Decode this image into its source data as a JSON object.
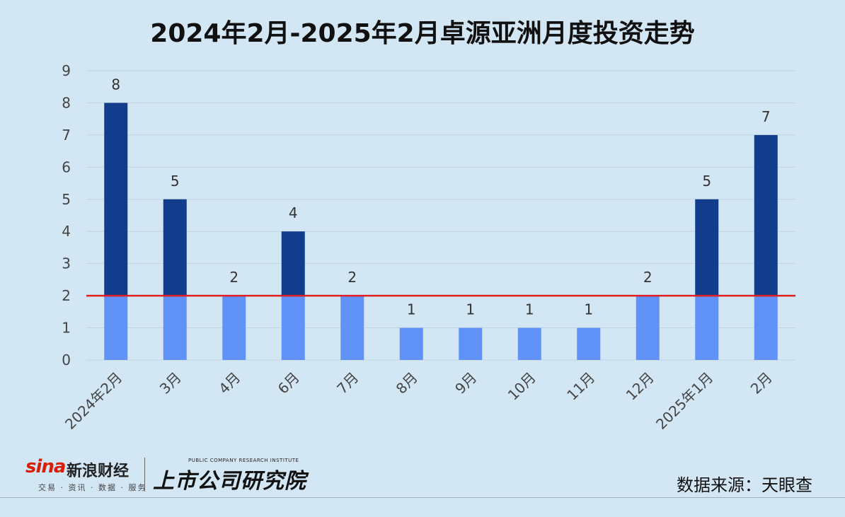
{
  "title": "2024年2月-2025年2月卓源亚洲月度投资走势",
  "source_note": "数据来源：天眼查",
  "logos": {
    "sina_latin": "sina",
    "sina_cn": "新浪财经",
    "sina_sub": "交易 · 资讯 · 数据 · 服务",
    "institute_en": "PUBLIC COMPANY RESEARCH INSTITUTE",
    "institute_cn": "上市公司研究院"
  },
  "colors": {
    "above_threshold": "#123c8c",
    "below_threshold": "#6092f7",
    "threshold_line": "#e02020",
    "grid": "#c2d4e2",
    "background": "#d3e6f4"
  },
  "chart_data": {
    "type": "bar",
    "title": "2024年2月-2025年2月卓源亚洲月度投资走势",
    "categories": [
      "2024年2月",
      "3月",
      "4月",
      "6月",
      "7月",
      "8月",
      "9月",
      "10月",
      "11月",
      "12月",
      "2025年1月",
      "2月"
    ],
    "values": [
      8,
      5,
      2,
      4,
      2,
      1,
      1,
      1,
      1,
      2,
      5,
      7
    ],
    "threshold": 2,
    "ylim": [
      0,
      9
    ],
    "yticks": [
      0,
      1,
      2,
      3,
      4,
      5,
      6,
      7,
      8,
      9
    ],
    "xlabel": "",
    "ylabel": "",
    "grid": true,
    "data_labels": true,
    "legend": "none"
  }
}
